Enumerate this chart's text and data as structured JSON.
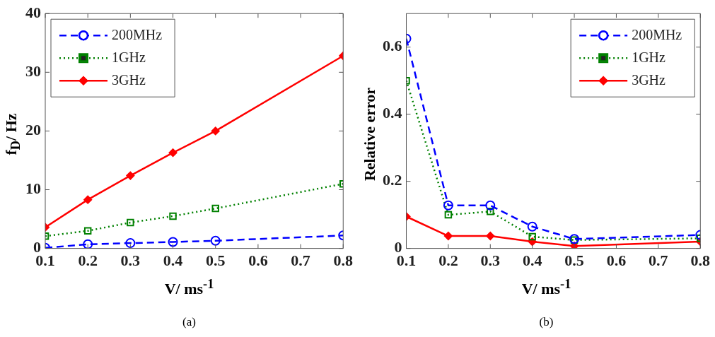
{
  "chart_data": [
    {
      "type": "line",
      "xlabel": "V/ ms$^{-1}$",
      "ylabel": "f$_{D}$/ Hz",
      "annotations": [
        "(a)"
      ],
      "xlim": [
        0.1,
        0.8
      ],
      "xticks": [
        0.1,
        0.2,
        0.3,
        0.4,
        0.5,
        0.6,
        0.7,
        0.8
      ],
      "ylim": [
        0,
        40
      ],
      "yticks": [
        0,
        10,
        20,
        30,
        40
      ],
      "legend": "top left",
      "x": [
        0.1,
        0.2,
        0.3,
        0.4,
        0.5,
        0.8
      ],
      "series": [
        {
          "name": "200MHz",
          "color": "#0000ff",
          "marker": "circle",
          "line_style": "dashed",
          "values": [
            0.1,
            0.7,
            0.9,
            1.1,
            1.3,
            2.2
          ]
        },
        {
          "name": "1GHz",
          "color": "#008000",
          "marker": "square",
          "line_style": "dotted",
          "values": [
            2.1,
            3.0,
            4.4,
            5.5,
            6.8,
            11.0
          ]
        },
        {
          "name": "3GHz",
          "color": "#ff0000",
          "marker": "diamond",
          "line_style": "solid",
          "values": [
            3.6,
            8.3,
            12.4,
            16.3,
            20.0,
            32.8
          ]
        }
      ]
    },
    {
      "type": "line",
      "xlabel": "V/ ms$^{-1}$",
      "ylabel": "Relative error",
      "annotations": [
        "(b)"
      ],
      "xlim": [
        0.1,
        0.8
      ],
      "xticks": [
        0.1,
        0.2,
        0.3,
        0.4,
        0.5,
        0.6,
        0.7,
        0.8
      ],
      "ylim": [
        0,
        0.7
      ],
      "yticks": [
        0,
        0.2,
        0.4,
        0.6
      ],
      "legend": "top right",
      "x": [
        0.1,
        0.2,
        0.3,
        0.4,
        0.5,
        0.8
      ],
      "series": [
        {
          "name": "200MHz",
          "color": "#0000ff",
          "marker": "circle",
          "line_style": "dashed",
          "values": [
            0.625,
            0.128,
            0.128,
            0.065,
            0.028,
            0.04
          ]
        },
        {
          "name": "1GHz",
          "color": "#008000",
          "marker": "square",
          "line_style": "dotted",
          "values": [
            0.5,
            0.1,
            0.11,
            0.035,
            0.025,
            0.03
          ]
        },
        {
          "name": "3GHz",
          "color": "#ff0000",
          "marker": "diamond",
          "line_style": "solid",
          "values": [
            0.095,
            0.037,
            0.037,
            0.02,
            0.007,
            0.02
          ]
        }
      ]
    }
  ]
}
